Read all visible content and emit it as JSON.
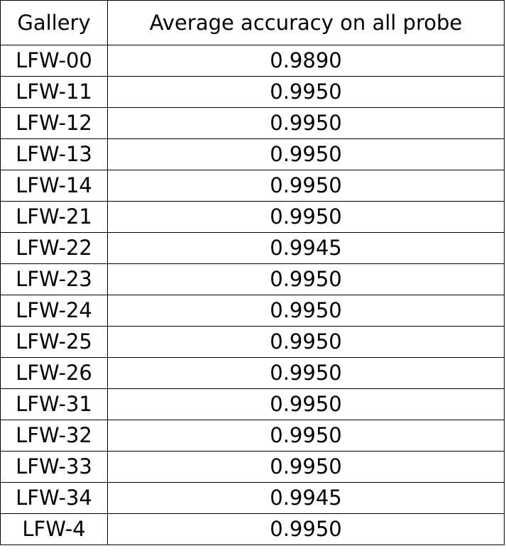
{
  "table": {
    "headers": [
      "Gallery",
      "Average accuracy on all probe"
    ],
    "rows": [
      {
        "gallery": "LFW-00",
        "accuracy": "0.9890"
      },
      {
        "gallery": "LFW-11",
        "accuracy": "0.9950"
      },
      {
        "gallery": "LFW-12",
        "accuracy": "0.9950"
      },
      {
        "gallery": "LFW-13",
        "accuracy": "0.9950"
      },
      {
        "gallery": "LFW-14",
        "accuracy": "0.9950"
      },
      {
        "gallery": "LFW-21",
        "accuracy": "0.9950"
      },
      {
        "gallery": "LFW-22",
        "accuracy": "0.9945"
      },
      {
        "gallery": "LFW-23",
        "accuracy": "0.9950"
      },
      {
        "gallery": "LFW-24",
        "accuracy": "0.9950"
      },
      {
        "gallery": "LFW-25",
        "accuracy": "0.9950"
      },
      {
        "gallery": "LFW-26",
        "accuracy": "0.9950"
      },
      {
        "gallery": "LFW-31",
        "accuracy": "0.9950"
      },
      {
        "gallery": "LFW-32",
        "accuracy": "0.9950"
      },
      {
        "gallery": "LFW-33",
        "accuracy": "0.9950"
      },
      {
        "gallery": "LFW-34",
        "accuracy": "0.9945"
      },
      {
        "gallery": "LFW-4",
        "accuracy": "0.9950"
      }
    ]
  }
}
